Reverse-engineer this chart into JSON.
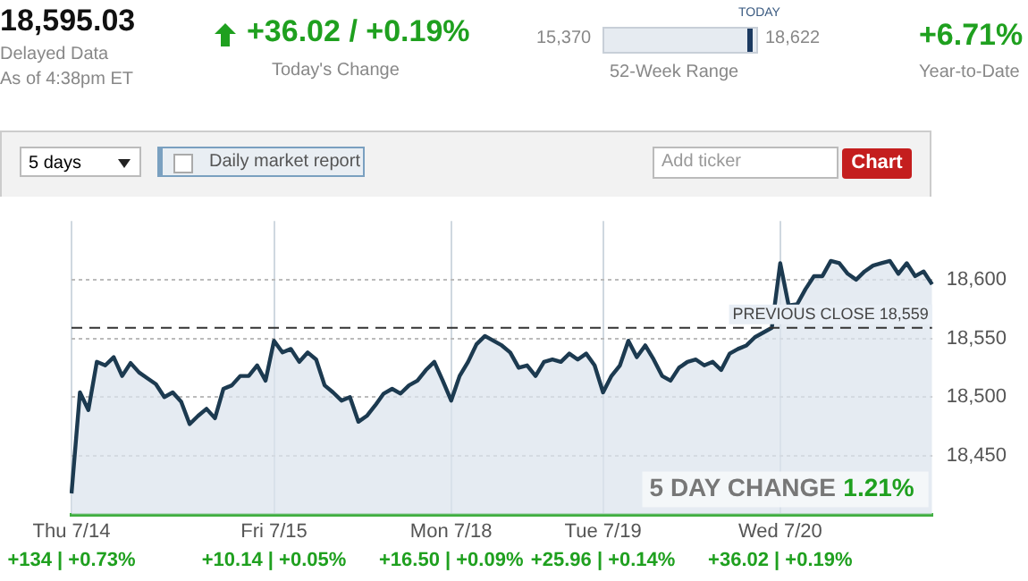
{
  "chart_data": {
    "type": "area",
    "categories": [
      "Thu 7/14",
      null,
      null,
      null,
      null,
      null,
      null,
      null,
      null,
      null,
      null,
      null,
      null,
      null,
      null,
      null,
      null,
      null,
      null,
      null,
      null,
      null,
      null,
      null,
      "Fri 7/15",
      null,
      null,
      null,
      null,
      null,
      null,
      null,
      null,
      null,
      null,
      null,
      null,
      null,
      null,
      null,
      null,
      null,
      null,
      null,
      null,
      "Mon 7/18",
      null,
      null,
      null,
      null,
      null,
      null,
      null,
      null,
      null,
      null,
      null,
      null,
      null,
      null,
      null,
      null,
      null,
      "Tue 7/19",
      null,
      null,
      null,
      null,
      null,
      null,
      null,
      null,
      null,
      null,
      null,
      null,
      null,
      null,
      null,
      null,
      null,
      null,
      null,
      null,
      "Wed 7/20",
      null,
      null,
      null,
      null,
      null,
      null,
      null,
      null,
      null,
      null,
      null,
      null,
      null,
      null,
      null,
      null,
      null,
      null
    ],
    "series": [
      {
        "color": "#1c3a50",
        "values": [
          18418,
          18504,
          18489,
          18530,
          18527,
          18534,
          18518,
          18529,
          18521,
          18516,
          18511,
          18500,
          18504,
          18496,
          18477,
          18484,
          18490,
          18482,
          18507,
          18510,
          18518,
          18518,
          18527,
          18514,
          18548,
          18538,
          18541,
          18530,
          18538,
          18532,
          18510,
          18504,
          18497,
          18500,
          18479,
          18484,
          18493,
          18503,
          18507,
          18503,
          18510,
          18514,
          18523,
          18530,
          18514,
          18497,
          18518,
          18530,
          18545,
          18552,
          18548,
          18544,
          18538,
          18525,
          18527,
          18518,
          18530,
          18532,
          18530,
          18537,
          18532,
          18537,
          18527,
          18504,
          18518,
          18527,
          18548,
          18534,
          18544,
          18532,
          18518,
          18514,
          18525,
          18530,
          18532,
          18527,
          18530,
          18523,
          18537,
          18541,
          18544,
          18551,
          18555,
          18559,
          18614,
          18578,
          18579,
          18592,
          18603,
          18603,
          18616,
          18614,
          18605,
          18600,
          18607,
          18612,
          18614,
          18616,
          18605,
          18614,
          18603,
          18607,
          18596
        ]
      }
    ],
    "ylim": [
      18400,
      18650
    ],
    "yticks": [
      {
        "value": 18450,
        "label": "18,450"
      },
      {
        "value": 18500,
        "label": "18,500"
      },
      {
        "value": 18550,
        "label": "18,550"
      },
      {
        "value": 18600,
        "label": "18,600"
      }
    ],
    "grid": true,
    "legend": false,
    "marker": "none",
    "line_style": "solid",
    "ref_lines": [
      {
        "axis": "y",
        "value": 18559,
        "label": "PREVIOUS CLOSE 18,559",
        "line_style": "dashed",
        "color": "#333333"
      }
    ],
    "annotations": [
      "18,595.03",
      "Delayed Data",
      "As of 4:38pm ET",
      "+36.02 / +0.19%",
      "Today's Change",
      "15,370",
      "18,622",
      "TODAY",
      "52-Week Range",
      "+6.71%",
      "Year-to-Date",
      "5 days",
      "Daily market report",
      "Add ticker",
      "Chart",
      "5 DAY CHANGE",
      "1.21%",
      "+134 | +0.73%",
      "+10.14 | +0.05%",
      "+16.50 | +0.09%",
      "+25.96 | +0.14%",
      "+36.02 | +0.19%"
    ]
  }
}
